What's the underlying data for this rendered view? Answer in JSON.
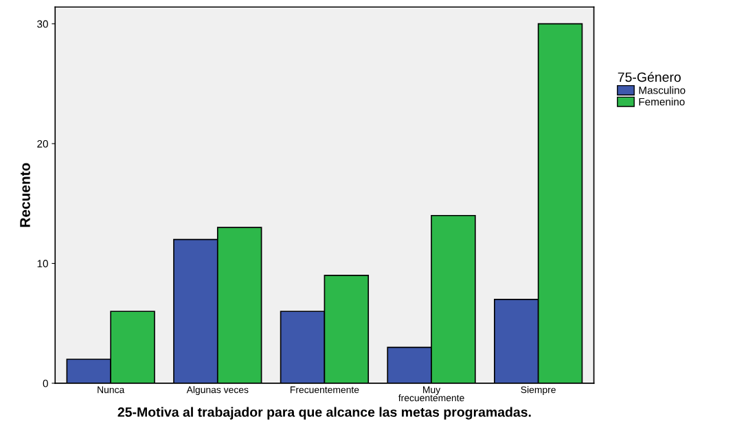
{
  "chart_data": {
    "type": "bar",
    "xlabel": "25-Motiva al trabajador para que alcance las metas programadas.",
    "ylabel": "Recuento",
    "legend_title": "75-Género",
    "categories": [
      "Nunca",
      "Algunas veces",
      "Frecuentemente",
      "Muy\nfrecuentemente",
      "Siempre"
    ],
    "series": [
      {
        "name": "Masculino",
        "color": "#3e58ac",
        "values": [
          2,
          12,
          6,
          3,
          7
        ]
      },
      {
        "name": "Femenino",
        "color": "#2db84a",
        "values": [
          6,
          13,
          9,
          14,
          30
        ]
      }
    ],
    "ylim": [
      0,
      31.4
    ],
    "yticks": [
      0,
      10,
      20,
      30
    ],
    "grid": false,
    "legend": "right"
  }
}
